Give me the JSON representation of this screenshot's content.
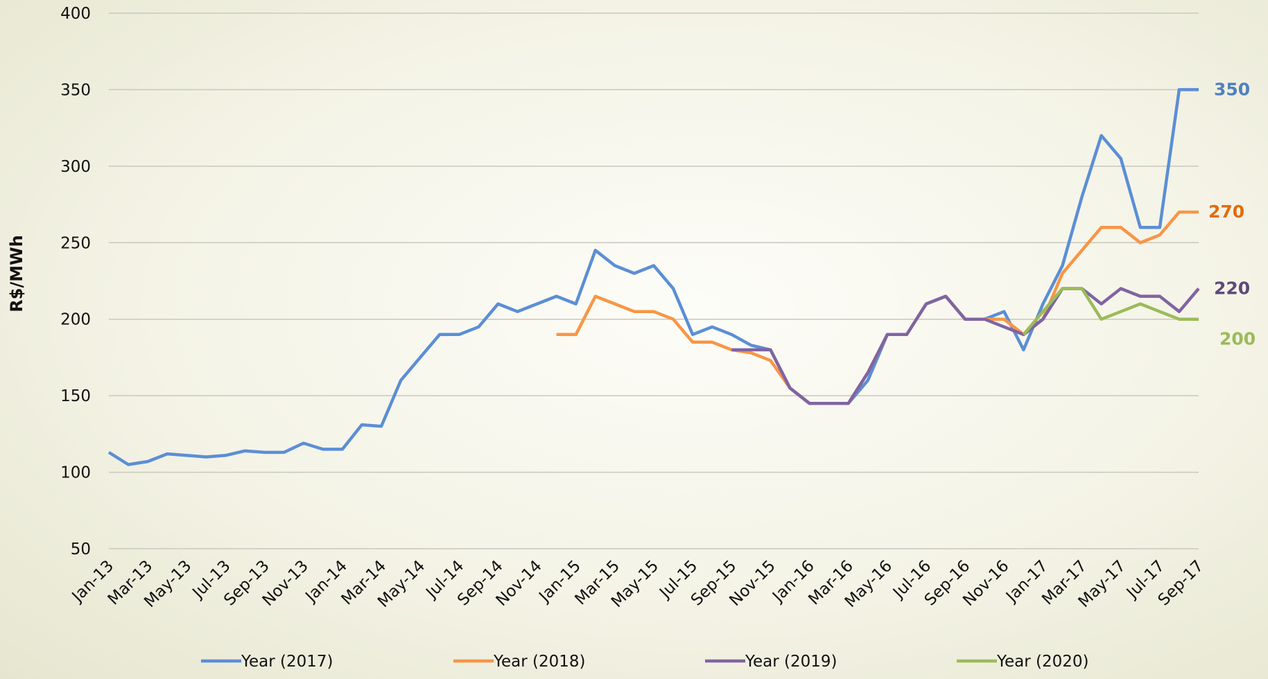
{
  "chart_data": {
    "type": "line",
    "y_label": "R$/MWh",
    "categories": [
      "Jan-13",
      null,
      "Mar-13",
      null,
      "May-13",
      null,
      "Jul-13",
      null,
      "Sep-13",
      null,
      "Nov-13",
      null,
      "Jan-14",
      null,
      "Mar-14",
      null,
      "May-14",
      null,
      "Jul-14",
      null,
      "Sep-14",
      null,
      "Nov-14",
      null,
      "Jan-15",
      null,
      "Mar-15",
      null,
      "May-15",
      null,
      "Jul-15",
      null,
      "Sep-15",
      null,
      "Nov-15",
      null,
      "Jan-16",
      null,
      "Mar-16",
      null,
      "May-16",
      null,
      "Jul-16",
      null,
      "Sep-16",
      null,
      "Nov-16",
      null,
      "Jan-17",
      null,
      "Mar-17",
      null,
      "May-17",
      null,
      "Jul-17",
      null,
      "Sep-17"
    ],
    "series": [
      {
        "name": "Year (2017)",
        "color": "#5b8ed6",
        "label_color": "#4f81bd",
        "values": [
          113,
          105,
          107,
          112,
          111,
          110,
          111,
          114,
          113,
          113,
          119,
          115,
          115,
          131,
          130,
          160,
          175,
          190,
          190,
          195,
          210,
          205,
          210,
          215,
          210,
          245,
          235,
          230,
          235,
          220,
          190,
          195,
          190,
          183,
          180,
          155,
          145,
          145,
          145,
          160,
          190,
          190,
          210,
          215,
          200,
          200,
          205,
          180,
          210,
          235,
          280,
          320,
          305,
          260,
          260,
          350,
          350
        ]
      },
      {
        "name": "Year (2018)",
        "color": "#f79646",
        "label_color": "#e36c09",
        "values": [
          null,
          null,
          null,
          null,
          null,
          null,
          null,
          null,
          null,
          null,
          null,
          null,
          null,
          null,
          null,
          null,
          null,
          null,
          null,
          null,
          null,
          null,
          null,
          190,
          190,
          215,
          210,
          205,
          205,
          200,
          185,
          185,
          180,
          178,
          173,
          155,
          145,
          145,
          145,
          165,
          190,
          190,
          210,
          215,
          200,
          200,
          200,
          190,
          200,
          230,
          245,
          260,
          260,
          250,
          255,
          270,
          270
        ]
      },
      {
        "name": "Year (2019)",
        "color": "#8064a2",
        "label_color": "#5f497a",
        "values": [
          null,
          null,
          null,
          null,
          null,
          null,
          null,
          null,
          null,
          null,
          null,
          null,
          null,
          null,
          null,
          null,
          null,
          null,
          null,
          null,
          null,
          null,
          null,
          null,
          null,
          null,
          null,
          null,
          null,
          null,
          null,
          null,
          180,
          180,
          180,
          155,
          145,
          145,
          145,
          165,
          190,
          190,
          210,
          215,
          200,
          200,
          195,
          190,
          200,
          220,
          220,
          210,
          220,
          215,
          215,
          205,
          220
        ]
      },
      {
        "name": "Year (2020)",
        "color": "#9bbb59",
        "label_color": "#9bbb59",
        "values": [
          null,
          null,
          null,
          null,
          null,
          null,
          null,
          null,
          null,
          null,
          null,
          null,
          null,
          null,
          null,
          null,
          null,
          null,
          null,
          null,
          null,
          null,
          null,
          null,
          null,
          null,
          null,
          null,
          null,
          null,
          null,
          null,
          null,
          null,
          null,
          null,
          null,
          null,
          null,
          null,
          null,
          null,
          null,
          null,
          null,
          null,
          null,
          190,
          205,
          220,
          220,
          200,
          205,
          210,
          205,
          200,
          200
        ]
      }
    ],
    "ylim": [
      50,
      400
    ],
    "yticks": [
      50,
      100,
      150,
      200,
      250,
      300,
      350,
      400
    ],
    "grid": true,
    "legend": "bottom"
  }
}
